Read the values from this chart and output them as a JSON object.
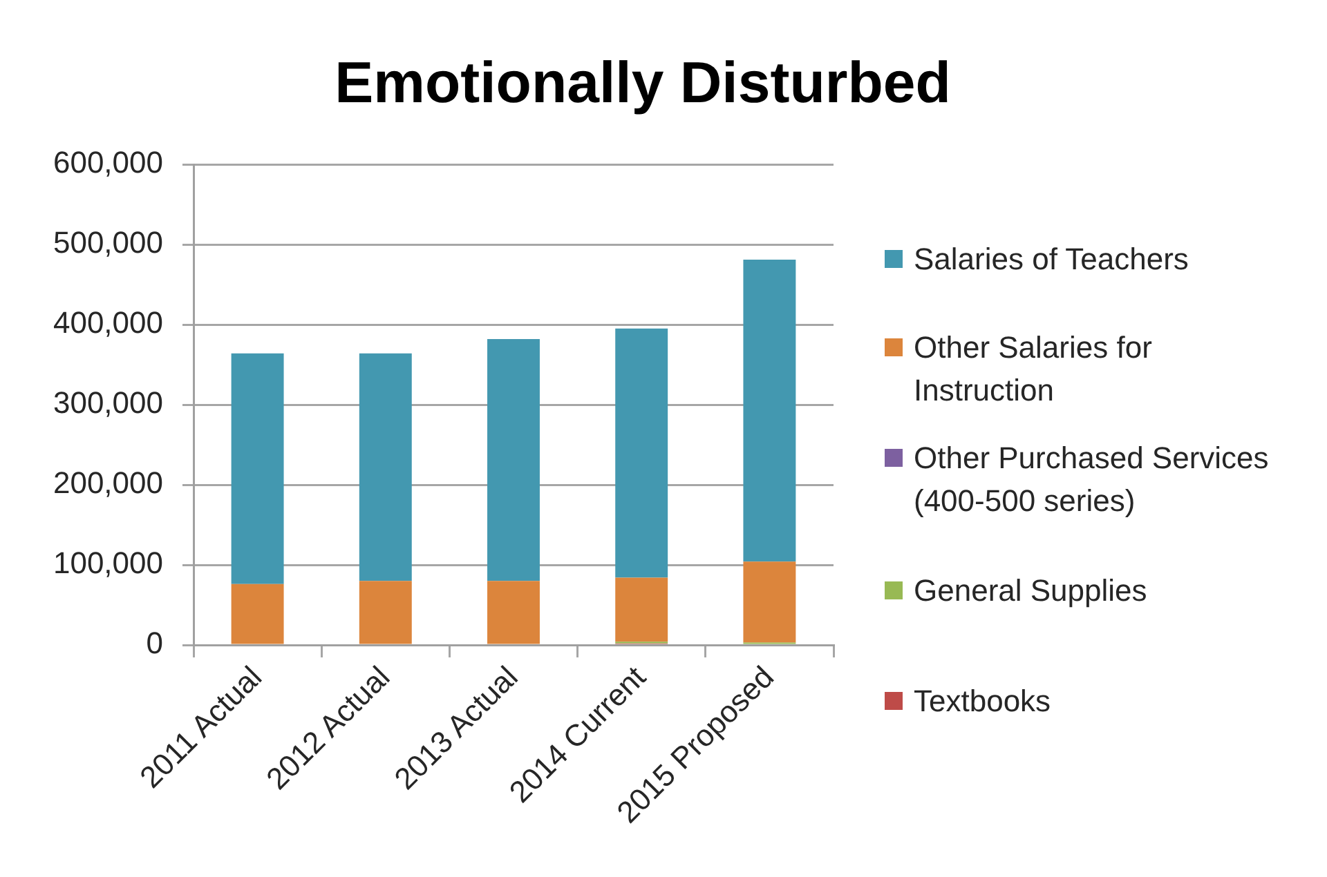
{
  "chart_data": {
    "type": "bar",
    "title": "Emotionally Disturbed",
    "categories": [
      "2011 Actual",
      "2012 Actual",
      "2013 Actual",
      "2014 Current",
      "2015 Proposed"
    ],
    "series": [
      {
        "name": "Textbooks",
        "color": "#be4b48",
        "values": [
          0,
          0,
          0,
          2000,
          0
        ]
      },
      {
        "name": "General Supplies",
        "color": "#98b954",
        "values": [
          0,
          0,
          0,
          2000,
          3000
        ]
      },
      {
        "name": "Other Purchased Services (400-500 series)",
        "color": "#7d60a0",
        "values": [
          0,
          0,
          0,
          0,
          0
        ]
      },
      {
        "name": "Other Salaries for Instruction",
        "color": "#dc853c",
        "values": [
          76000,
          80000,
          80000,
          80000,
          101000
        ]
      },
      {
        "name": "Salaries of Teachers",
        "color": "#4398b0",
        "values": [
          288000,
          284000,
          302000,
          311000,
          377000
        ]
      }
    ],
    "stacked": true,
    "ylim": [
      0,
      600000
    ],
    "yticks": [
      0,
      {
        "value": 100000,
        "label": "100,000"
      },
      {
        "value": 200000,
        "label": "200,000"
      },
      {
        "value": 300000,
        "label": "300,000"
      },
      {
        "value": 400000,
        "label": "400,000"
      },
      {
        "value": 500000,
        "label": "500,000"
      },
      {
        "value": 600000,
        "label": "600,000"
      }
    ],
    "grid": "y",
    "legend": "right"
  }
}
